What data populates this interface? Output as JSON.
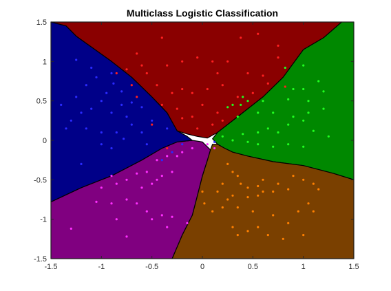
{
  "chart_data": {
    "type": "scatter",
    "title": "Multiclass Logistic Classification",
    "xlabel": "",
    "ylabel": "",
    "xlim": [
      -1.5,
      1.5
    ],
    "ylim": [
      -1.5,
      1.5
    ],
    "xticks": [
      "-1.5",
      "-1",
      "-0.5",
      "0",
      "0.5",
      "1",
      "1.5"
    ],
    "xtick_values": [
      -1.5,
      -1,
      -0.5,
      0,
      0.5,
      1,
      1.5
    ],
    "yticks": [
      "1.5",
      "1",
      "0.5",
      "0",
      "-0.5",
      "-1",
      "-1.5"
    ],
    "ytick_values": [
      1.5,
      1,
      0.5,
      0,
      -0.5,
      -1,
      -1.5
    ],
    "grid": false,
    "legend": "none",
    "regions": [
      {
        "class": "top",
        "color": "#8a0000",
        "polygon": [
          [
            -1.5,
            1.5
          ],
          [
            -1.35,
            1.45
          ],
          [
            -1.25,
            1.32
          ],
          [
            -0.9,
            1.0
          ],
          [
            -0.7,
            0.8
          ],
          [
            -0.5,
            0.55
          ],
          [
            -0.35,
            0.35
          ],
          [
            -0.25,
            0.12
          ],
          [
            -0.15,
            0.08
          ],
          [
            -0.05,
            0.05
          ],
          [
            0.05,
            0.03
          ],
          [
            0.15,
            0.1
          ],
          [
            0.35,
            0.3
          ],
          [
            0.6,
            0.55
          ],
          [
            0.8,
            0.8
          ],
          [
            1.0,
            1.15
          ],
          [
            1.2,
            1.3
          ],
          [
            1.38,
            1.5
          ]
        ]
      },
      {
        "class": "right",
        "color": "#008800",
        "polygon": [
          [
            1.38,
            1.5
          ],
          [
            1.5,
            1.5
          ],
          [
            1.5,
            -0.5
          ],
          [
            1.3,
            -0.42
          ],
          [
            1.0,
            -0.32
          ],
          [
            0.7,
            -0.27
          ],
          [
            0.45,
            -0.2
          ],
          [
            0.3,
            -0.15
          ],
          [
            0.22,
            -0.1
          ],
          [
            0.15,
            -0.05
          ],
          [
            0.1,
            0.02
          ],
          [
            0.15,
            0.1
          ],
          [
            0.35,
            0.3
          ],
          [
            0.6,
            0.55
          ],
          [
            0.8,
            0.8
          ],
          [
            1.0,
            1.15
          ],
          [
            1.2,
            1.3
          ]
        ]
      },
      {
        "class": "bottom-right",
        "color": "#7a4000",
        "polygon": [
          [
            0.1,
            -0.05
          ],
          [
            0.15,
            -0.05
          ],
          [
            0.22,
            -0.1
          ],
          [
            0.3,
            -0.15
          ],
          [
            0.45,
            -0.2
          ],
          [
            0.7,
            -0.27
          ],
          [
            1.0,
            -0.32
          ],
          [
            1.3,
            -0.42
          ],
          [
            1.5,
            -0.5
          ],
          [
            1.5,
            -1.5
          ],
          [
            -0.3,
            -1.5
          ],
          [
            -0.2,
            -1.2
          ],
          [
            -0.1,
            -0.95
          ],
          [
            -0.05,
            -0.7
          ],
          [
            0.0,
            -0.45
          ],
          [
            0.05,
            -0.25
          ],
          [
            0.08,
            -0.12
          ]
        ]
      },
      {
        "class": "bottom-left",
        "color": "#800080",
        "polygon": [
          [
            -1.5,
            -0.78
          ],
          [
            -1.2,
            -0.6
          ],
          [
            -0.9,
            -0.45
          ],
          [
            -0.6,
            -0.25
          ],
          [
            -0.4,
            -0.1
          ],
          [
            -0.25,
            -0.02
          ],
          [
            -0.1,
            0.0
          ],
          [
            0.0,
            -0.02
          ],
          [
            0.08,
            -0.12
          ],
          [
            0.05,
            -0.25
          ],
          [
            0.0,
            -0.45
          ],
          [
            -0.05,
            -0.7
          ],
          [
            -0.1,
            -0.95
          ],
          [
            -0.2,
            -1.2
          ],
          [
            -0.3,
            -1.5
          ],
          [
            -1.5,
            -1.5
          ]
        ]
      },
      {
        "class": "left",
        "color": "#000088",
        "polygon": [
          [
            -1.5,
            1.5
          ],
          [
            -1.35,
            1.45
          ],
          [
            -1.25,
            1.32
          ],
          [
            -0.9,
            1.0
          ],
          [
            -0.7,
            0.8
          ],
          [
            -0.5,
            0.55
          ],
          [
            -0.35,
            0.35
          ],
          [
            -0.25,
            0.12
          ],
          [
            -0.15,
            0.05
          ],
          [
            -0.1,
            0.0
          ],
          [
            -0.25,
            -0.02
          ],
          [
            -0.4,
            -0.1
          ],
          [
            -0.6,
            -0.25
          ],
          [
            -0.9,
            -0.45
          ],
          [
            -1.2,
            -0.6
          ],
          [
            -1.5,
            -0.78
          ]
        ]
      }
    ],
    "series": [
      {
        "color": "#ff2020",
        "points": [
          [
            -0.4,
            1.3
          ],
          [
            0.38,
            1.3
          ],
          [
            0.55,
            1.35
          ],
          [
            0.75,
            1.2
          ],
          [
            0.75,
            1.05
          ],
          [
            -0.65,
            1.1
          ],
          [
            -0.6,
            0.95
          ],
          [
            -0.55,
            0.85
          ],
          [
            -0.35,
            0.95
          ],
          [
            -0.2,
            1.0
          ],
          [
            -0.05,
            1.05
          ],
          [
            0.1,
            1.0
          ],
          [
            0.25,
            1.0
          ],
          [
            0.45,
            0.85
          ],
          [
            0.6,
            0.82
          ],
          [
            0.15,
            0.85
          ],
          [
            -0.45,
            0.7
          ],
          [
            -0.3,
            0.6
          ],
          [
            -0.2,
            0.65
          ],
          [
            -0.1,
            0.6
          ],
          [
            0.05,
            0.65
          ],
          [
            0.2,
            0.7
          ],
          [
            0.35,
            0.55
          ],
          [
            0.5,
            0.6
          ],
          [
            -0.4,
            0.45
          ],
          [
            -0.25,
            0.4
          ],
          [
            0.0,
            0.45
          ],
          [
            0.15,
            0.35
          ],
          [
            -0.2,
            0.28
          ],
          [
            -0.1,
            0.3
          ],
          [
            0.1,
            0.2
          ],
          [
            0.2,
            0.25
          ],
          [
            -0.05,
            0.15
          ],
          [
            -0.75,
            0.9
          ],
          [
            -0.85,
            0.85
          ],
          [
            -0.7,
            0.7
          ],
          [
            -0.65,
            0.55
          ],
          [
            0.65,
            0.72
          ],
          [
            0.82,
            0.68
          ],
          [
            -0.5,
            0.2
          ],
          [
            -0.35,
            -0.1
          ]
        ]
      },
      {
        "color": "#20ff20",
        "points": [
          [
            0.82,
            0.92
          ],
          [
            1.0,
            0.95
          ],
          [
            1.15,
            0.75
          ],
          [
            1.2,
            0.62
          ],
          [
            1.0,
            0.65
          ],
          [
            0.9,
            0.65
          ],
          [
            1.05,
            0.5
          ],
          [
            0.85,
            0.52
          ],
          [
            0.6,
            0.5
          ],
          [
            0.45,
            0.5
          ],
          [
            0.4,
            0.55
          ],
          [
            0.3,
            0.45
          ],
          [
            0.35,
            0.3
          ],
          [
            0.55,
            0.35
          ],
          [
            0.7,
            0.35
          ],
          [
            0.9,
            0.3
          ],
          [
            1.05,
            0.35
          ],
          [
            1.2,
            0.4
          ],
          [
            0.65,
            0.15
          ],
          [
            0.75,
            0.1
          ],
          [
            0.85,
            0.2
          ],
          [
            1.0,
            0.25
          ],
          [
            1.1,
            0.12
          ],
          [
            1.25,
            0.05
          ],
          [
            0.55,
            0.1
          ],
          [
            0.4,
            0.08
          ],
          [
            0.45,
            -0.02
          ],
          [
            0.55,
            -0.05
          ],
          [
            0.7,
            -0.08
          ],
          [
            0.85,
            -0.05
          ],
          [
            1.0,
            -0.08
          ],
          [
            0.3,
            0.0
          ],
          [
            0.2,
            0.05
          ],
          [
            0.38,
            0.45
          ],
          [
            0.25,
            0.42
          ]
        ]
      },
      {
        "color": "#ff8000",
        "points": [
          [
            0.25,
            -0.3
          ],
          [
            0.3,
            -0.4
          ],
          [
            0.35,
            -0.45
          ],
          [
            0.38,
            -0.55
          ],
          [
            0.45,
            -0.6
          ],
          [
            0.55,
            -0.58
          ],
          [
            0.6,
            -0.5
          ],
          [
            0.75,
            -0.55
          ],
          [
            0.9,
            -0.45
          ],
          [
            1.0,
            -0.5
          ],
          [
            1.1,
            -0.55
          ],
          [
            1.15,
            -0.62
          ],
          [
            0.85,
            -0.62
          ],
          [
            0.7,
            -0.65
          ],
          [
            0.6,
            -0.65
          ],
          [
            0.55,
            -0.7
          ],
          [
            0.45,
            -0.72
          ],
          [
            0.3,
            -0.7
          ],
          [
            0.25,
            -0.75
          ],
          [
            0.2,
            -0.85
          ],
          [
            0.35,
            -0.85
          ],
          [
            0.5,
            -0.9
          ],
          [
            0.7,
            -0.95
          ],
          [
            0.85,
            -1.05
          ],
          [
            0.95,
            -0.9
          ],
          [
            1.05,
            -0.8
          ],
          [
            1.1,
            -0.9
          ],
          [
            0.3,
            -1.1
          ],
          [
            0.35,
            -1.2
          ],
          [
            0.45,
            -1.15
          ],
          [
            0.55,
            -1.1
          ],
          [
            0.65,
            -1.2
          ],
          [
            0.8,
            -1.25
          ],
          [
            1.0,
            -1.2
          ],
          [
            0.2,
            -0.55
          ],
          [
            0.0,
            -0.65
          ],
          [
            0.1,
            -0.9
          ],
          [
            0.15,
            -0.65
          ],
          [
            0.02,
            -0.8
          ]
        ]
      },
      {
        "color": "#ff30ff",
        "points": [
          [
            -1.3,
            -1.12
          ],
          [
            -1.05,
            -0.78
          ],
          [
            -0.9,
            -0.8
          ],
          [
            -0.75,
            -0.75
          ],
          [
            -0.65,
            -0.8
          ],
          [
            -0.55,
            -0.9
          ],
          [
            -0.4,
            -0.95
          ],
          [
            -0.3,
            -0.97
          ],
          [
            -0.15,
            -1.05
          ],
          [
            -0.75,
            -1.22
          ],
          [
            -0.85,
            -1.0
          ],
          [
            -1.0,
            -0.6
          ],
          [
            -0.85,
            -0.55
          ],
          [
            -0.75,
            -0.5
          ],
          [
            -0.6,
            -0.6
          ],
          [
            -0.5,
            -0.55
          ],
          [
            -0.45,
            -0.5
          ],
          [
            -0.4,
            -0.45
          ],
          [
            -0.3,
            -0.4
          ],
          [
            -0.45,
            -0.25
          ],
          [
            -0.35,
            -0.2
          ],
          [
            -0.25,
            -0.2
          ],
          [
            -0.2,
            -0.15
          ],
          [
            -0.1,
            -0.1
          ],
          [
            0.05,
            -0.05
          ],
          [
            -0.55,
            -0.4
          ],
          [
            -0.65,
            -0.42
          ],
          [
            -0.9,
            -0.45
          ],
          [
            -0.35,
            -1.1
          ],
          [
            -0.5,
            -1.0
          ],
          [
            0.12,
            -0.1
          ]
        ]
      },
      {
        "color": "#2a2aff",
        "points": [
          [
            -1.25,
            1.02
          ],
          [
            -1.1,
            0.92
          ],
          [
            -1.15,
            0.7
          ],
          [
            -1.25,
            0.55
          ],
          [
            -1.05,
            0.8
          ],
          [
            -1.2,
            0.35
          ],
          [
            -1.1,
            0.4
          ],
          [
            -0.95,
            0.6
          ],
          [
            -0.8,
            0.62
          ],
          [
            -0.88,
            0.72
          ],
          [
            -1.0,
            0.5
          ],
          [
            -0.8,
            0.45
          ],
          [
            -0.7,
            0.48
          ],
          [
            -0.6,
            0.42
          ],
          [
            -0.9,
            0.35
          ],
          [
            -0.75,
            0.3
          ],
          [
            -1.3,
            0.25
          ],
          [
            -1.15,
            0.15
          ],
          [
            -1.0,
            0.1
          ],
          [
            -0.85,
            0.1
          ],
          [
            -0.7,
            0.2
          ],
          [
            -0.6,
            0.1
          ],
          [
            -0.5,
            0.25
          ],
          [
            -0.35,
            0.15
          ],
          [
            -1.0,
            -0.05
          ],
          [
            -0.9,
            -0.1
          ],
          [
            -0.78,
            0.02
          ],
          [
            -0.55,
            -0.05
          ],
          [
            -0.4,
            -0.25
          ],
          [
            -0.3,
            -0.15
          ],
          [
            -0.2,
            -0.05
          ],
          [
            -0.9,
            0.85
          ],
          [
            -1.4,
            0.45
          ],
          [
            -1.35,
            0.15
          ],
          [
            -1.2,
            -0.3
          ],
          [
            0.12,
            -0.02
          ]
        ]
      }
    ]
  }
}
